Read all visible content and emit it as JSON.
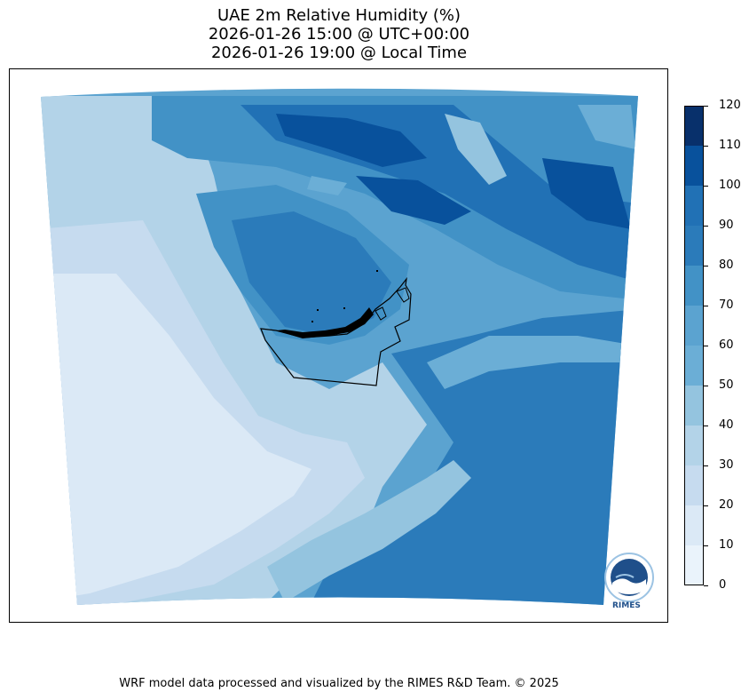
{
  "title": {
    "line1": "UAE 2m Relative Humidity (%)",
    "line2": "2026-01-26 15:00 @ UTC+00:00",
    "line3": "2026-01-26 19:00 @ Local Time"
  },
  "colorbar": {
    "ticks": [
      "120",
      "110",
      "100",
      "90",
      "80",
      "70",
      "60",
      "50",
      "40",
      "30",
      "20",
      "10",
      "0"
    ],
    "colors": [
      "#08306b",
      "#08519c",
      "#2171b5",
      "#2b7bba",
      "#4292c6",
      "#5ba3d0",
      "#6baed6",
      "#94c4df",
      "#b3d3e8",
      "#c6dbef",
      "#dbe9f6",
      "#eaf3fb"
    ]
  },
  "logo": {
    "text": "RIMES",
    "icon": "rimes-logo-icon"
  },
  "footer": "WRF model data processed and visualized by the RIMES R&D Team. © 2025"
}
